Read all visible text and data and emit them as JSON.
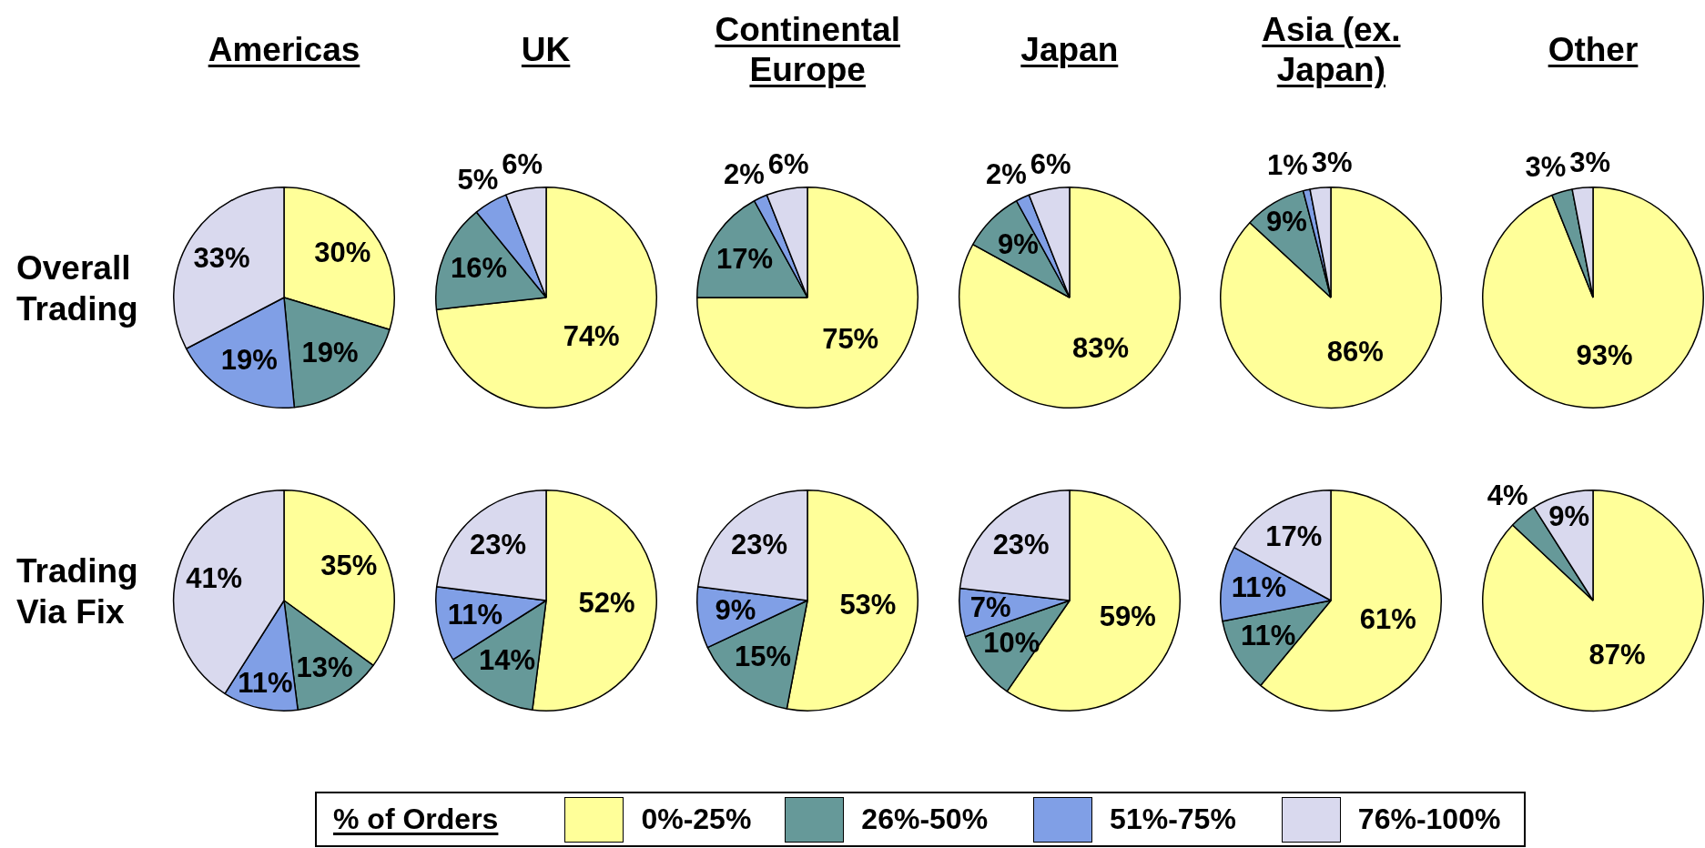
{
  "chart_data": [
    {
      "type": "pie",
      "title": "Americas",
      "ylabel": "Overall Trading",
      "categories": [
        null,
        null,
        null,
        null
      ],
      "values": [
        30,
        19,
        19,
        33
      ],
      "colors": [
        "#ffff99",
        "#669999",
        "#809fe6",
        "#d9d9ee"
      ],
      "value_labels": [
        "30%",
        "19%",
        "19%",
        "33%"
      ]
    },
    {
      "type": "pie",
      "title": "UK",
      "categories": [
        null,
        null,
        null,
        null
      ],
      "values": [
        74,
        16,
        5,
        6
      ],
      "colors": [
        "#ffff99",
        "#669999",
        "#809fe6",
        "#d9d9ee"
      ],
      "value_labels": [
        "74%",
        "16%",
        "5%",
        "6%"
      ]
    },
    {
      "type": "pie",
      "title": "Continental Europe",
      "categories": [
        null,
        null,
        null,
        null
      ],
      "values": [
        75,
        17,
        2,
        6
      ],
      "colors": [
        "#ffff99",
        "#669999",
        "#809fe6",
        "#d9d9ee"
      ],
      "value_labels": [
        "75%",
        "17%",
        "2%",
        "6%"
      ]
    },
    {
      "type": "pie",
      "title": "Japan",
      "categories": [
        null,
        null,
        null,
        null
      ],
      "values": [
        83,
        9,
        2,
        6
      ],
      "colors": [
        "#ffff99",
        "#669999",
        "#809fe6",
        "#d9d9ee"
      ],
      "value_labels": [
        "83%",
        "9%",
        "2%",
        "6%"
      ]
    },
    {
      "type": "pie",
      "title": "Asia (ex. Japan)",
      "categories": [
        null,
        null,
        null,
        null
      ],
      "values": [
        86,
        9,
        1,
        3
      ],
      "colors": [
        "#ffff99",
        "#669999",
        "#809fe6",
        "#d9d9ee"
      ],
      "value_labels": [
        "86%",
        "9%",
        "1%",
        "3%"
      ]
    },
    {
      "type": "pie",
      "title": "Other",
      "categories": [
        null,
        null,
        null,
        null
      ],
      "values": [
        93,
        3,
        null,
        3
      ],
      "colors": [
        "#ffff99",
        "#669999",
        "#809fe6",
        "#d9d9ee"
      ],
      "value_labels": [
        "93%",
        "3%",
        null,
        "3%"
      ]
    },
    {
      "type": "pie",
      "ylabel": "Trading Via Fix",
      "categories": [
        null,
        null,
        null,
        null
      ],
      "values": [
        35,
        13,
        11,
        41
      ],
      "colors": [
        "#ffff99",
        "#669999",
        "#809fe6",
        "#d9d9ee"
      ],
      "value_labels": [
        "35%",
        "13%",
        "11%",
        "41%"
      ]
    },
    {
      "type": "pie",
      "categories": [
        null,
        null,
        null,
        null
      ],
      "values": [
        52,
        14,
        11,
        23
      ],
      "colors": [
        "#ffff99",
        "#669999",
        "#809fe6",
        "#d9d9ee"
      ],
      "value_labels": [
        "52%",
        "14%",
        "11%",
        "23%"
      ]
    },
    {
      "type": "pie",
      "categories": [
        null,
        null,
        null,
        null
      ],
      "values": [
        53,
        15,
        9,
        23
      ],
      "colors": [
        "#ffff99",
        "#669999",
        "#809fe6",
        "#d9d9ee"
      ],
      "value_labels": [
        "53%",
        "15%",
        "9%",
        "23%"
      ]
    },
    {
      "type": "pie",
      "categories": [
        null,
        null,
        null,
        null
      ],
      "values": [
        59,
        10,
        7,
        23
      ],
      "colors": [
        "#ffff99",
        "#669999",
        "#809fe6",
        "#d9d9ee"
      ],
      "value_labels": [
        "59%",
        "10%",
        "7%",
        "23%"
      ]
    },
    {
      "type": "pie",
      "categories": [
        null,
        null,
        null,
        null
      ],
      "values": [
        61,
        11,
        11,
        17
      ],
      "colors": [
        "#ffff99",
        "#669999",
        "#809fe6",
        "#d9d9ee"
      ],
      "value_labels": [
        "61%",
        "11%",
        "11%",
        "17%"
      ]
    },
    {
      "type": "pie",
      "categories": [
        "0%-25%",
        "26%-50%",
        "51%-75%",
        "76%-100%"
      ],
      "values": [
        87,
        4,
        null,
        9
      ],
      "colors": [
        "#ffff99",
        "#669999",
        "#809fe6",
        "#d9d9ee"
      ],
      "value_labels": [
        "87%",
        "4%",
        null,
        "9%"
      ],
      "legend": "bottom",
      "legend_title": "% of Orders"
    }
  ]
}
